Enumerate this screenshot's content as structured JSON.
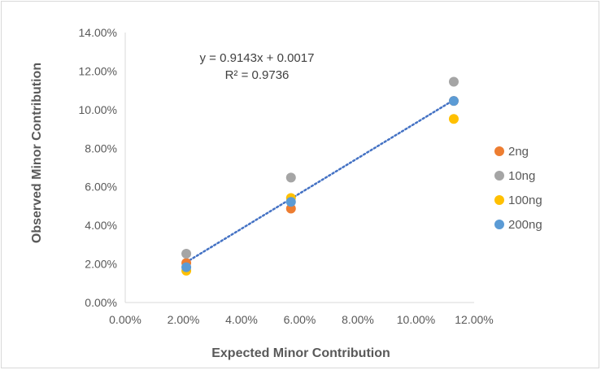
{
  "chart_data": {
    "type": "scatter",
    "title": "",
    "xlabel": "Expected Minor Contribution",
    "ylabel": "Observed Minor Contribution",
    "xlim": [
      0,
      0.12
    ],
    "ylim": [
      0,
      0.14
    ],
    "x_ticks": [
      "0.00%",
      "2.00%",
      "4.00%",
      "6.00%",
      "8.00%",
      "10.00%",
      "12.00%"
    ],
    "y_ticks": [
      "0.00%",
      "2.00%",
      "4.00%",
      "6.00%",
      "8.00%",
      "10.00%",
      "12.00%",
      "14.00%"
    ],
    "grid": false,
    "legend_position": "right",
    "series": [
      {
        "name": "2ng",
        "color": "#ed7d31",
        "x": [
          0.021,
          0.057,
          0.113
        ],
        "y": [
          0.0205,
          0.0487,
          0.1045
        ]
      },
      {
        "name": "10ng",
        "color": "#a5a5a5",
        "x": [
          0.021,
          0.057,
          0.113
        ],
        "y": [
          0.0253,
          0.0648,
          0.1145
        ]
      },
      {
        "name": "100ng",
        "color": "#ffc000",
        "x": [
          0.021,
          0.057,
          0.113
        ],
        "y": [
          0.0165,
          0.0542,
          0.0952
        ]
      },
      {
        "name": "200ng",
        "color": "#5b9bd5",
        "x": [
          0.021,
          0.057,
          0.113
        ],
        "y": [
          0.0183,
          0.0522,
          0.1045
        ]
      }
    ],
    "trendline": {
      "color": "#4472c4",
      "style": "dotted",
      "slope": 0.9143,
      "intercept": 0.0017,
      "x_range": [
        0.021,
        0.113
      ],
      "equation": "y = 0.9143x + 0.0017",
      "r_squared": "R² = 0.9736"
    }
  }
}
